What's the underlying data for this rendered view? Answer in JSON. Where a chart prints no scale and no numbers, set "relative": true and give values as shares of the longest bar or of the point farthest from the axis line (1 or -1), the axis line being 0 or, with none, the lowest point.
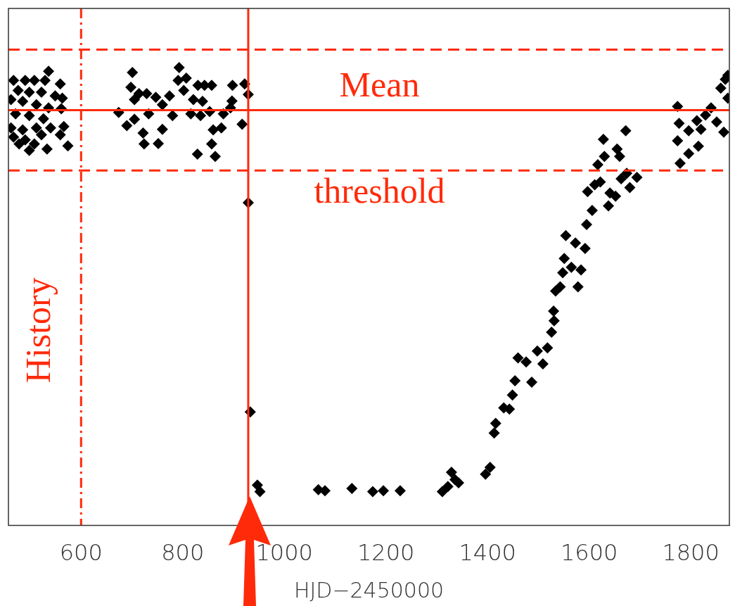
{
  "chart_data": {
    "type": "scatter",
    "xlabel": "HJD−2450000",
    "relative": true,
    "xlim": [
      457,
      1876
    ],
    "xticks": [
      600,
      800,
      1000,
      1200,
      1400,
      1600,
      1800
    ],
    "grid": false,
    "legend": false,
    "tick_labels": "x",
    "marker": "diamond",
    "series": [
      {
        "color": "#000000",
        "x": [
          536,
          467,
          490,
          508,
          529,
          559,
          476,
          498,
          522,
          549,
          563,
          462,
          485,
          512,
          536,
          561,
          471,
          498,
          526,
          462,
          485,
          512,
          540,
          566,
          467,
          490,
          522,
          559,
          498,
          533,
          574,
          478,
          508,
          674,
          701,
          698,
          714,
          729,
          705,
          690,
          705,
          722,
          724,
          752,
          760,
          733,
          747,
          760,
          780,
          774,
          793,
          791,
          807,
          802,
          830,
          843,
          857,
          821,
          839,
          816,
          835,
          853,
          860,
          876,
          857,
          829,
          864,
          880,
          897,
          898,
          922,
          929,
          917,
          894,
          929,
          933,
          947,
          952,
          1067,
          1080,
          1133,
          1174,
          1195,
          1228,
          1311,
          1322,
          1329,
          1336,
          1343,
          1396,
          1405,
          1413,
          1416,
          1432,
          1443,
          1449,
          1454,
          1460,
          1476,
          1487,
          1498,
          1509,
          1518,
          1526,
          1531,
          1530,
          1534,
          1543,
          1548,
          1551,
          1554,
          1565,
          1573,
          1584,
          1578,
          1592,
          1595,
          1606,
          1597,
          1611,
          1617,
          1622,
          1628,
          1630,
          1641,
          1638,
          1652,
          1655,
          1660,
          1663,
          1674,
          1680,
          1694,
          1672,
          1774,
          1777,
          1774,
          1779,
          1796,
          1796,
          1815,
          1812,
          1820,
          1829,
          1840,
          1851,
          1859,
          1865,
          1868,
          1873,
          1873
        ],
        "values": [
          0.992,
          0.972,
          0.972,
          0.972,
          0.972,
          0.964,
          0.95,
          0.946,
          0.946,
          0.938,
          0.933,
          0.93,
          0.926,
          0.919,
          0.912,
          0.91,
          0.899,
          0.895,
          0.888,
          0.868,
          0.864,
          0.868,
          0.868,
          0.871,
          0.848,
          0.842,
          0.853,
          0.853,
          0.819,
          0.822,
          0.829,
          0.833,
          0.833,
          0.902,
          0.989,
          0.957,
          0.943,
          0.943,
          0.93,
          0.873,
          0.887,
          0.857,
          0.833,
          0.834,
          0.865,
          0.899,
          0.935,
          0.919,
          0.895,
          0.938,
          1.0,
          0.972,
          0.977,
          0.95,
          0.961,
          0.961,
          0.961,
          0.93,
          0.926,
          0.899,
          0.895,
          0.904,
          0.864,
          0.868,
          0.833,
          0.811,
          0.806,
          0.899,
          0.927,
          0.961,
          0.964,
          0.941,
          0.876,
          0.912,
          0.705,
          0.248,
          0.088,
          0.074,
          0.078,
          0.076,
          0.081,
          0.074,
          0.076,
          0.076,
          0.074,
          0.085,
          0.116,
          0.1,
          0.093,
          0.112,
          0.127,
          0.202,
          0.223,
          0.257,
          0.254,
          0.285,
          0.316,
          0.366,
          0.357,
          0.313,
          0.381,
          0.353,
          0.388,
          0.422,
          0.447,
          0.468,
          0.512,
          0.521,
          0.552,
          0.583,
          0.633,
          0.564,
          0.617,
          0.558,
          0.521,
          0.605,
          0.657,
          0.688,
          0.729,
          0.744,
          0.788,
          0.75,
          0.843,
          0.806,
          0.726,
          0.698,
          0.719,
          0.822,
          0.806,
          0.757,
          0.769,
          0.738,
          0.76,
          0.862,
          0.915,
          0.878,
          0.84,
          0.791,
          0.862,
          0.812,
          0.828,
          0.884,
          0.865,
          0.896,
          0.912,
          0.881,
          0.955,
          0.859,
          0.974,
          0.933,
          0.983
        ]
      }
    ],
    "ref_lines": [
      {
        "axis": "y",
        "value": 0.907,
        "label": "Mean",
        "color": "#ff2a0a",
        "line_style": "solid"
      },
      {
        "axis": "y",
        "value": 0.775,
        "label": "threshold",
        "color": "#ff2a0a",
        "line_style": "dashed"
      },
      {
        "axis": "y",
        "value": 1.039,
        "color": "#ff2a0a",
        "line_style": "dashed"
      },
      {
        "axis": "x",
        "value": 600,
        "label": "History",
        "color": "#ff2a0a",
        "line_style": "dashdot"
      },
      {
        "axis": "x",
        "value": 929,
        "color": "#ff2a0a",
        "line_style": "solid"
      }
    ]
  }
}
